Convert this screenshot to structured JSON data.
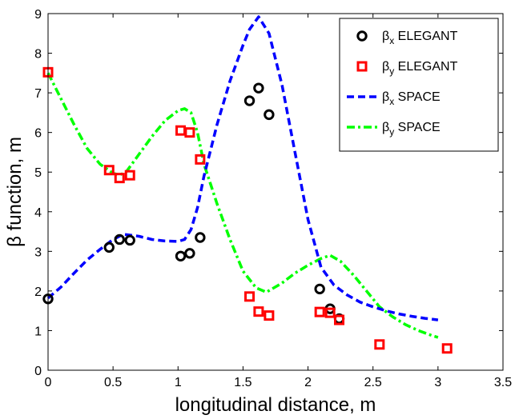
{
  "chart_data": {
    "type": "scatter",
    "title": "",
    "xlabel": "longitudinal distance, m",
    "ylabel": "β function, m",
    "xlim": [
      0,
      3.5
    ],
    "ylim": [
      0,
      9
    ],
    "xticks": [
      "0",
      "0.5",
      "1",
      "1.5",
      "2",
      "2.5",
      "3",
      "3.5"
    ],
    "yticks": [
      "0",
      "1",
      "2",
      "3",
      "4",
      "5",
      "6",
      "7",
      "8",
      "9"
    ],
    "grid": false,
    "legend_position": "top-right",
    "series": [
      {
        "name": "βx ELEGANT",
        "legend_main": "β",
        "legend_sub": "x",
        "legend_rest": " ELEGANT",
        "kind": "markers",
        "marker": "circle",
        "color": "#000000",
        "points": [
          [
            0.0,
            1.8
          ],
          [
            0.47,
            3.1
          ],
          [
            0.55,
            3.3
          ],
          [
            0.63,
            3.28
          ],
          [
            1.02,
            2.88
          ],
          [
            1.09,
            2.95
          ],
          [
            1.17,
            3.35
          ],
          [
            1.55,
            6.8
          ],
          [
            1.62,
            7.12
          ],
          [
            1.7,
            6.45
          ],
          [
            2.09,
            2.05
          ],
          [
            2.17,
            1.55
          ],
          [
            2.24,
            1.3
          ]
        ]
      },
      {
        "name": "βy ELEGANT",
        "legend_main": "β",
        "legend_sub": "y",
        "legend_rest": " ELEGANT",
        "kind": "markers",
        "marker": "square",
        "color": "#ff0000",
        "points": [
          [
            0.0,
            7.52
          ],
          [
            0.47,
            5.05
          ],
          [
            0.55,
            4.85
          ],
          [
            0.63,
            4.92
          ],
          [
            1.02,
            6.05
          ],
          [
            1.09,
            6.0
          ],
          [
            1.17,
            5.32
          ],
          [
            1.55,
            1.86
          ],
          [
            1.62,
            1.48
          ],
          [
            1.7,
            1.38
          ],
          [
            2.09,
            1.47
          ],
          [
            2.17,
            1.45
          ],
          [
            2.24,
            1.27
          ],
          [
            2.55,
            0.65
          ],
          [
            3.07,
            0.55
          ]
        ]
      },
      {
        "name": "βx SPACE",
        "legend_main": "β",
        "legend_sub": "x",
        "legend_rest": " SPACE",
        "kind": "line",
        "dash": "dashed",
        "color": "#0000ff",
        "points": [
          [
            0.0,
            1.82
          ],
          [
            0.1,
            2.1
          ],
          [
            0.2,
            2.45
          ],
          [
            0.3,
            2.78
          ],
          [
            0.4,
            3.05
          ],
          [
            0.5,
            3.3
          ],
          [
            0.58,
            3.43
          ],
          [
            0.7,
            3.38
          ],
          [
            0.8,
            3.3
          ],
          [
            0.9,
            3.26
          ],
          [
            1.0,
            3.25
          ],
          [
            1.05,
            3.3
          ],
          [
            1.1,
            3.55
          ],
          [
            1.15,
            4.1
          ],
          [
            1.2,
            4.9
          ],
          [
            1.3,
            6.2
          ],
          [
            1.4,
            7.3
          ],
          [
            1.5,
            8.2
          ],
          [
            1.55,
            8.6
          ],
          [
            1.62,
            8.92
          ],
          [
            1.7,
            8.5
          ],
          [
            1.8,
            7.2
          ],
          [
            1.9,
            5.5
          ],
          [
            2.0,
            3.8
          ],
          [
            2.1,
            2.6
          ],
          [
            2.2,
            2.15
          ],
          [
            2.3,
            1.9
          ],
          [
            2.4,
            1.72
          ],
          [
            2.5,
            1.6
          ],
          [
            2.6,
            1.5
          ],
          [
            2.7,
            1.42
          ],
          [
            2.8,
            1.36
          ],
          [
            2.9,
            1.31
          ],
          [
            3.0,
            1.27
          ]
        ]
      },
      {
        "name": "βy SPACE",
        "legend_main": "β",
        "legend_sub": "y",
        "legend_rest": " SPACE",
        "kind": "line",
        "dash": "dashdot",
        "color": "#00ff00",
        "points": [
          [
            0.0,
            7.5
          ],
          [
            0.1,
            6.85
          ],
          [
            0.2,
            6.2
          ],
          [
            0.3,
            5.6
          ],
          [
            0.4,
            5.2
          ],
          [
            0.5,
            4.97
          ],
          [
            0.55,
            4.93
          ],
          [
            0.6,
            5.0
          ],
          [
            0.7,
            5.45
          ],
          [
            0.8,
            5.9
          ],
          [
            0.9,
            6.3
          ],
          [
            1.0,
            6.55
          ],
          [
            1.05,
            6.6
          ],
          [
            1.1,
            6.5
          ],
          [
            1.15,
            6.0
          ],
          [
            1.2,
            5.2
          ],
          [
            1.3,
            4.2
          ],
          [
            1.4,
            3.3
          ],
          [
            1.5,
            2.5
          ],
          [
            1.6,
            2.08
          ],
          [
            1.68,
            1.97
          ],
          [
            1.8,
            2.2
          ],
          [
            1.9,
            2.45
          ],
          [
            2.0,
            2.65
          ],
          [
            2.1,
            2.82
          ],
          [
            2.17,
            2.9
          ],
          [
            2.25,
            2.75
          ],
          [
            2.35,
            2.4
          ],
          [
            2.45,
            2.0
          ],
          [
            2.55,
            1.6
          ],
          [
            2.65,
            1.35
          ],
          [
            2.75,
            1.15
          ],
          [
            2.85,
            1.0
          ],
          [
            2.95,
            0.88
          ],
          [
            3.0,
            0.83
          ]
        ]
      }
    ]
  }
}
